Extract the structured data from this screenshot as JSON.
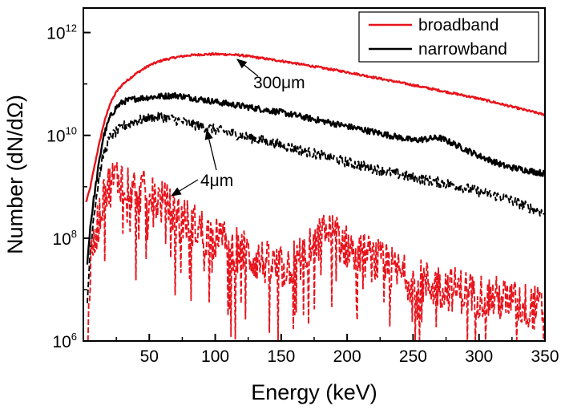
{
  "chart_data": {
    "type": "line",
    "title": "",
    "xlabel": "Energy (keV)",
    "ylabel": "Number (dN/dΩ)",
    "xlim": [
      0,
      350
    ],
    "ylim": [
      1000000,
      3000000000000
    ],
    "yscale": "log",
    "grid": false,
    "legend_position": "top-right",
    "x_ticks": [
      50,
      100,
      150,
      200,
      250,
      300,
      350
    ],
    "y_ticks": [
      {
        "base": "10",
        "exponent": "6",
        "value": 1000000
      },
      {
        "base": "10",
        "exponent": "8",
        "value": 100000000
      },
      {
        "base": "10",
        "exponent": "10",
        "value": 10000000000
      },
      {
        "base": "10",
        "exponent": "12",
        "value": 1000000000000
      }
    ],
    "legend": [
      {
        "label": "broadband",
        "color": "#e8141c",
        "line": "solid"
      },
      {
        "label": "narrowband",
        "color": "#000000",
        "line": "solid"
      }
    ],
    "annotations": [
      {
        "text": "300μm",
        "point_x": 88,
        "point_y": 51000000000
      },
      {
        "text": "4μm",
        "point_x": 75,
        "point_y": 14000000000
      },
      {
        "text": "4μm",
        "point_x": 55,
        "point_y": 520000000
      }
    ],
    "series": [
      {
        "name": "broadband",
        "thickness": "300μm",
        "color": "#e8141c",
        "dash": "solid",
        "noise": 0.02,
        "points": [
          [
            2,
            500000000
          ],
          [
            5,
            900000000
          ],
          [
            10,
            4000000000
          ],
          [
            15,
            15000000000
          ],
          [
            20,
            40000000000
          ],
          [
            25,
            70000000000
          ],
          [
            30,
            100000000000
          ],
          [
            40,
            160000000000
          ],
          [
            50,
            230000000000
          ],
          [
            60,
            290000000000
          ],
          [
            70,
            330000000000
          ],
          [
            80,
            360000000000
          ],
          [
            90,
            375000000000
          ],
          [
            100,
            380000000000
          ],
          [
            110,
            375000000000
          ],
          [
            120,
            360000000000
          ],
          [
            150,
            280000000000
          ],
          [
            200,
            170000000000
          ],
          [
            250,
            95000000000
          ],
          [
            300,
            52000000000
          ],
          [
            350,
            25000000000
          ]
        ]
      },
      {
        "name": "narrowband",
        "thickness": "300μm",
        "color": "#000000",
        "dash": "solid",
        "noise": 0.06,
        "points": [
          [
            3,
            30000000
          ],
          [
            5,
            150000000
          ],
          [
            8,
            600000000
          ],
          [
            12,
            3000000000
          ],
          [
            15,
            9000000000
          ],
          [
            20,
            22000000000
          ],
          [
            25,
            35000000000
          ],
          [
            30,
            45000000000
          ],
          [
            40,
            52000000000
          ],
          [
            50,
            55000000000
          ],
          [
            60,
            58000000000
          ],
          [
            70,
            60000000000
          ],
          [
            80,
            55000000000
          ],
          [
            100,
            45000000000
          ],
          [
            150,
            28000000000
          ],
          [
            200,
            15000000000
          ],
          [
            250,
            8000000000
          ],
          [
            270,
            9000000000
          ],
          [
            280,
            7000000000
          ],
          [
            300,
            4000000000
          ],
          [
            320,
            2500000000
          ],
          [
            350,
            1800000000
          ]
        ]
      },
      {
        "name": "narrowband",
        "thickness": "4μm",
        "color": "#000000",
        "dash": "dashed",
        "noise": 0.1,
        "points": [
          [
            3,
            5000000
          ],
          [
            5,
            50000000
          ],
          [
            8,
            300000000
          ],
          [
            12,
            1500000000
          ],
          [
            15,
            4000000000
          ],
          [
            20,
            9000000000
          ],
          [
            30,
            15000000000
          ],
          [
            40,
            19000000000
          ],
          [
            50,
            22000000000
          ],
          [
            60,
            23000000000
          ],
          [
            70,
            20000000000
          ],
          [
            80,
            17000000000
          ],
          [
            100,
            13000000000
          ],
          [
            150,
            6500000000
          ],
          [
            200,
            3000000000
          ],
          [
            250,
            1500000000
          ],
          [
            280,
            1100000000
          ],
          [
            300,
            800000000
          ],
          [
            320,
            600000000
          ],
          [
            350,
            300000000
          ]
        ]
      },
      {
        "name": "broadband",
        "thickness": "4μm",
        "color": "#e8141c",
        "dash": "dashed",
        "noise": 0.45,
        "points": [
          [
            3,
            1500000
          ],
          [
            5,
            20000000
          ],
          [
            10,
            150000000
          ],
          [
            15,
            600000000
          ],
          [
            20,
            1100000000
          ],
          [
            25,
            1500000000
          ],
          [
            30,
            1400000000
          ],
          [
            40,
            900000000
          ],
          [
            50,
            700000000
          ],
          [
            60,
            500000000
          ],
          [
            80,
            200000000
          ],
          [
            100,
            100000000
          ],
          [
            130,
            40000000
          ],
          [
            150,
            25000000
          ],
          [
            170,
            50000000
          ],
          [
            185,
            140000000
          ],
          [
            200,
            70000000
          ],
          [
            250,
            15000000
          ],
          [
            300,
            8000000
          ],
          [
            350,
            4000000
          ]
        ]
      }
    ]
  }
}
